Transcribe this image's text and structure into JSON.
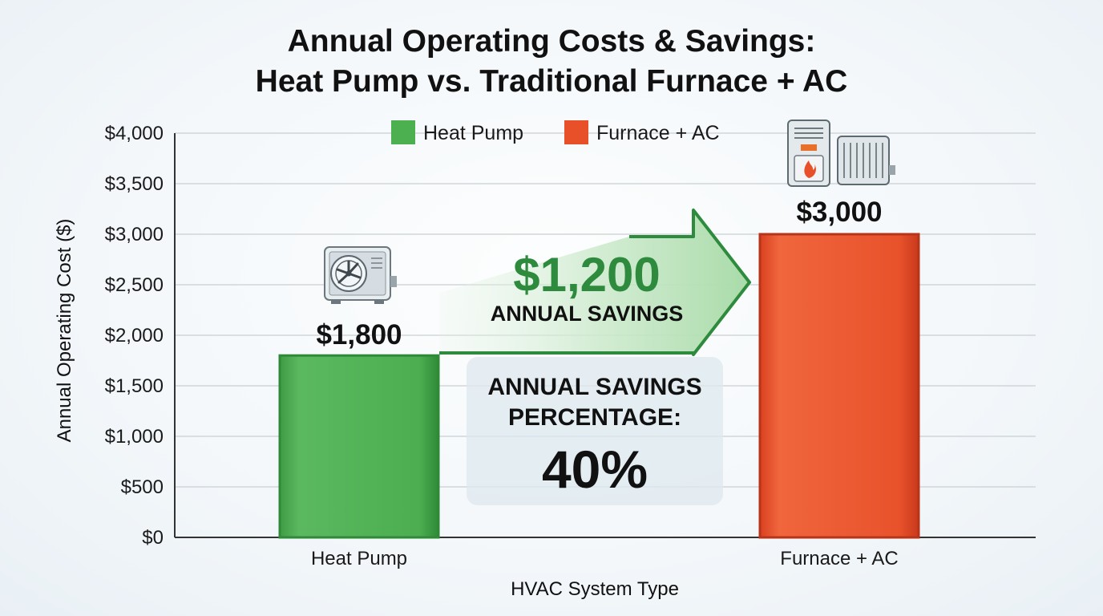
{
  "chart_data": {
    "type": "bar",
    "title": "Annual Operating Costs & Savings:",
    "subtitle": "Heat Pump vs. Traditional Furnace + AC",
    "xlabel": "HVAC System Type",
    "ylabel": "Annual Operating Cost ($)",
    "ylim": [
      0,
      4000
    ],
    "yticks": [
      0,
      500,
      1000,
      1500,
      2000,
      2500,
      3000,
      3500,
      4000
    ],
    "ytick_labels": [
      "$0",
      "$500",
      "$1,000",
      "$1,500",
      "$2,000",
      "$2,500",
      "$3,000",
      "$3,500",
      "$4,000"
    ],
    "categories": [
      "Heat Pump",
      "Furnace + AC"
    ],
    "values": [
      1800,
      3000
    ],
    "value_labels": [
      "$1,800",
      "$3,000"
    ],
    "colors": [
      "#4caf50",
      "#e8502a"
    ],
    "legend": {
      "placement": "top-center",
      "entries": [
        {
          "label": "Heat Pump",
          "color": "#4caf50"
        },
        {
          "label": "Furnace + AC",
          "color": "#e8502a"
        }
      ]
    },
    "grid": true,
    "annotations": {
      "savings_amount": "$1,200",
      "savings_label": "ANNUAL SAVINGS",
      "percentage_label_line1": "ANNUAL SAVINGS",
      "percentage_label_line2": "PERCENTAGE:",
      "percentage_value": "40%"
    },
    "icons": {
      "heat_pump": "heat-pump-unit-icon",
      "furnace": "furnace-icon",
      "ac": "ac-condenser-icon"
    }
  }
}
